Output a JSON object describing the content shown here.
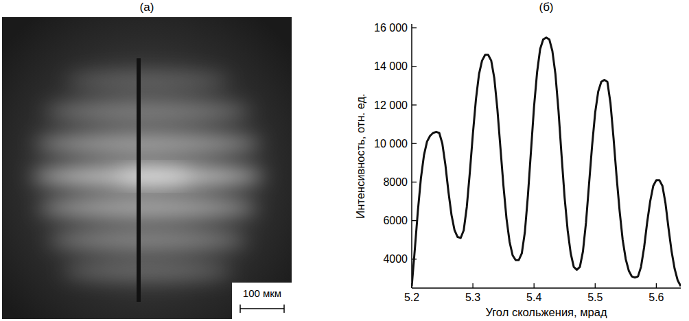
{
  "image": {
    "label": "(а)",
    "scale_bar": "100 мкм"
  },
  "chart_data": {
    "type": "line",
    "title": "(б)",
    "x_label": "Угол скольжения, мрад",
    "y_label": "Интенсивность, отн. ед.",
    "color": "#111111",
    "grid": false,
    "xlim": [
      5.2,
      5.64
    ],
    "xticks": [
      5.2,
      5.3,
      5.4,
      5.5,
      5.6
    ],
    "ylim": [
      2500,
      16200
    ],
    "yticks": [
      4000,
      6000,
      8000,
      {
        "value": 10000,
        "label": "10 000"
      },
      {
        "value": 12000,
        "label": "12 000"
      },
      {
        "value": 14000,
        "label": "14 000"
      },
      {
        "value": 16000,
        "label": "16 000"
      }
    ],
    "x": [
      5.2,
      5.205,
      5.21,
      5.215,
      5.22,
      5.225,
      5.23,
      5.235,
      5.24,
      5.245,
      5.25,
      5.255,
      5.26,
      5.265,
      5.27,
      5.275,
      5.28,
      5.285,
      5.29,
      5.295,
      5.3,
      5.305,
      5.31,
      5.315,
      5.32,
      5.325,
      5.33,
      5.335,
      5.34,
      5.345,
      5.35,
      5.355,
      5.36,
      5.365,
      5.37,
      5.375,
      5.38,
      5.385,
      5.39,
      5.395,
      5.4,
      5.405,
      5.41,
      5.415,
      5.42,
      5.425,
      5.43,
      5.435,
      5.44,
      5.445,
      5.45,
      5.455,
      5.46,
      5.465,
      5.47,
      5.475,
      5.48,
      5.485,
      5.49,
      5.495,
      5.5,
      5.505,
      5.51,
      5.515,
      5.52,
      5.525,
      5.53,
      5.535,
      5.54,
      5.545,
      5.55,
      5.555,
      5.56,
      5.565,
      5.57,
      5.575,
      5.58,
      5.585,
      5.59,
      5.595,
      5.6,
      5.605,
      5.61,
      5.615,
      5.62,
      5.625,
      5.63,
      5.635,
      5.64
    ],
    "values": [
      2600,
      4500,
      6500,
      8200,
      9400,
      10100,
      10400,
      10550,
      10600,
      10550,
      10000,
      8900,
      7500,
      6300,
      5500,
      5150,
      5100,
      5500,
      6700,
      8500,
      10500,
      12300,
      13600,
      14300,
      14600,
      14600,
      14300,
      13400,
      11800,
      9800,
      7800,
      6100,
      4900,
      4200,
      3950,
      3950,
      4300,
      5400,
      7300,
      9600,
      11900,
      13700,
      14900,
      15400,
      15500,
      15400,
      14800,
      13600,
      11700,
      9400,
      7200,
      5500,
      4300,
      3600,
      3450,
      3600,
      4400,
      5900,
      7900,
      9900,
      11600,
      12700,
      13200,
      13300,
      13200,
      12100,
      10300,
      8300,
      6500,
      5000,
      4000,
      3400,
      3100,
      3050,
      3100,
      3600,
      4600,
      5900,
      7000,
      7800,
      8100,
      8100,
      7800,
      6900,
      5600,
      4400,
      3500,
      2900,
      2600
    ]
  }
}
